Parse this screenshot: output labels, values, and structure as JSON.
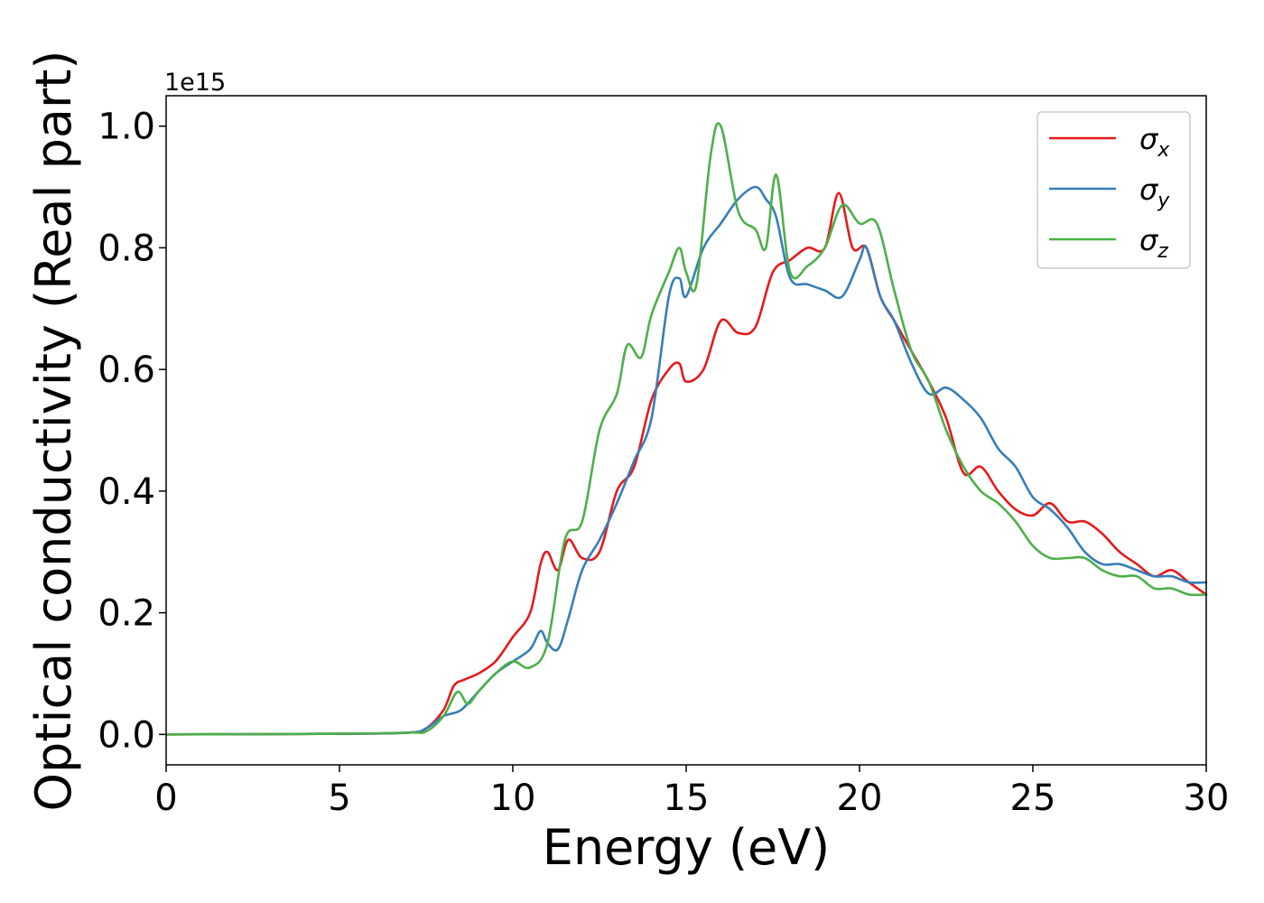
{
  "chart_data": {
    "type": "line",
    "xlabel": "Energy (eV)",
    "ylabel": "Optical conductivity (Real part)",
    "y_offset_text": "1e15",
    "xlim": [
      0,
      30
    ],
    "ylim": [
      -0.05,
      1.05
    ],
    "x_ticks": [
      0,
      5,
      10,
      15,
      20,
      25,
      30
    ],
    "y_ticks": [
      0.0,
      0.2,
      0.4,
      0.6,
      0.8,
      1.0
    ],
    "y_tick_labels": [
      "0.0",
      "0.2",
      "0.4",
      "0.6",
      "0.8",
      "1.0"
    ],
    "grid": false,
    "legend_position": "top-right",
    "series": [
      {
        "name": "σx",
        "symbol": "σ",
        "subscript": "x",
        "color": "#e41a1c",
        "x": [
          0,
          5,
          7,
          7.5,
          8,
          8.3,
          8.6,
          9,
          9.5,
          10,
          10.5,
          10.8,
          11,
          11.3,
          11.6,
          12,
          12.5,
          13,
          13.5,
          14,
          14.5,
          14.8,
          15,
          15.5,
          16,
          16.5,
          17,
          17.5,
          18,
          18.5,
          19,
          19.4,
          19.8,
          20.2,
          20.6,
          21,
          21.5,
          22,
          22.5,
          23,
          23.5,
          24,
          24.5,
          25,
          25.5,
          26,
          26.5,
          27,
          27.5,
          28,
          28.5,
          29,
          29.5,
          30
        ],
        "y": [
          0,
          0.001,
          0.003,
          0.01,
          0.04,
          0.08,
          0.09,
          0.1,
          0.12,
          0.16,
          0.2,
          0.28,
          0.3,
          0.27,
          0.32,
          0.29,
          0.3,
          0.4,
          0.44,
          0.55,
          0.6,
          0.61,
          0.58,
          0.6,
          0.68,
          0.66,
          0.67,
          0.76,
          0.78,
          0.8,
          0.8,
          0.89,
          0.8,
          0.8,
          0.72,
          0.68,
          0.63,
          0.58,
          0.52,
          0.43,
          0.44,
          0.4,
          0.37,
          0.36,
          0.38,
          0.35,
          0.35,
          0.33,
          0.3,
          0.28,
          0.26,
          0.27,
          0.25,
          0.23
        ]
      },
      {
        "name": "σy",
        "symbol": "σ",
        "subscript": "y",
        "color": "#377eb8",
        "x": [
          0,
          5,
          7,
          7.5,
          8,
          8.5,
          9,
          9.5,
          10,
          10.5,
          10.8,
          11,
          11.3,
          11.6,
          12,
          12.5,
          13,
          13.5,
          14,
          14.5,
          14.8,
          15,
          15.5,
          16,
          16.5,
          17,
          17.3,
          17.6,
          18,
          18.5,
          19,
          19.5,
          20,
          20.2,
          20.6,
          21,
          21.5,
          22,
          22.5,
          23,
          23.5,
          24,
          24.5,
          25,
          25.5,
          26,
          26.5,
          27,
          27.5,
          28,
          28.5,
          29,
          29.5,
          30
        ],
        "y": [
          0,
          0.001,
          0.003,
          0.01,
          0.03,
          0.04,
          0.07,
          0.1,
          0.12,
          0.14,
          0.17,
          0.15,
          0.14,
          0.19,
          0.27,
          0.32,
          0.38,
          0.45,
          0.52,
          0.72,
          0.75,
          0.72,
          0.8,
          0.84,
          0.88,
          0.9,
          0.88,
          0.85,
          0.75,
          0.74,
          0.73,
          0.72,
          0.78,
          0.8,
          0.72,
          0.68,
          0.61,
          0.56,
          0.57,
          0.55,
          0.52,
          0.47,
          0.44,
          0.39,
          0.37,
          0.34,
          0.3,
          0.28,
          0.28,
          0.27,
          0.26,
          0.26,
          0.25,
          0.25
        ]
      },
      {
        "name": "σz",
        "symbol": "σ",
        "subscript": "z",
        "color": "#4daf4a",
        "x": [
          0,
          5,
          7,
          7.5,
          8,
          8.4,
          8.7,
          9,
          9.5,
          10,
          10.5,
          11,
          11.5,
          12,
          12.5,
          13,
          13.3,
          13.7,
          14,
          14.5,
          14.8,
          15,
          15.3,
          15.7,
          16,
          16.5,
          17,
          17.3,
          17.6,
          18,
          18.5,
          19,
          19.5,
          20,
          20.5,
          21,
          21.5,
          22,
          22.5,
          23,
          23.5,
          24,
          24.5,
          25,
          25.5,
          26,
          26.5,
          27,
          27.5,
          28,
          28.5,
          29,
          29.5,
          30
        ],
        "y": [
          0,
          0.001,
          0.003,
          0.005,
          0.03,
          0.07,
          0.05,
          0.07,
          0.1,
          0.12,
          0.11,
          0.15,
          0.32,
          0.35,
          0.5,
          0.56,
          0.64,
          0.62,
          0.69,
          0.76,
          0.8,
          0.76,
          0.74,
          0.95,
          1.0,
          0.86,
          0.83,
          0.8,
          0.92,
          0.76,
          0.77,
          0.8,
          0.87,
          0.84,
          0.84,
          0.73,
          0.63,
          0.58,
          0.5,
          0.44,
          0.4,
          0.38,
          0.35,
          0.31,
          0.29,
          0.29,
          0.29,
          0.27,
          0.26,
          0.26,
          0.24,
          0.24,
          0.23,
          0.23
        ]
      }
    ]
  }
}
